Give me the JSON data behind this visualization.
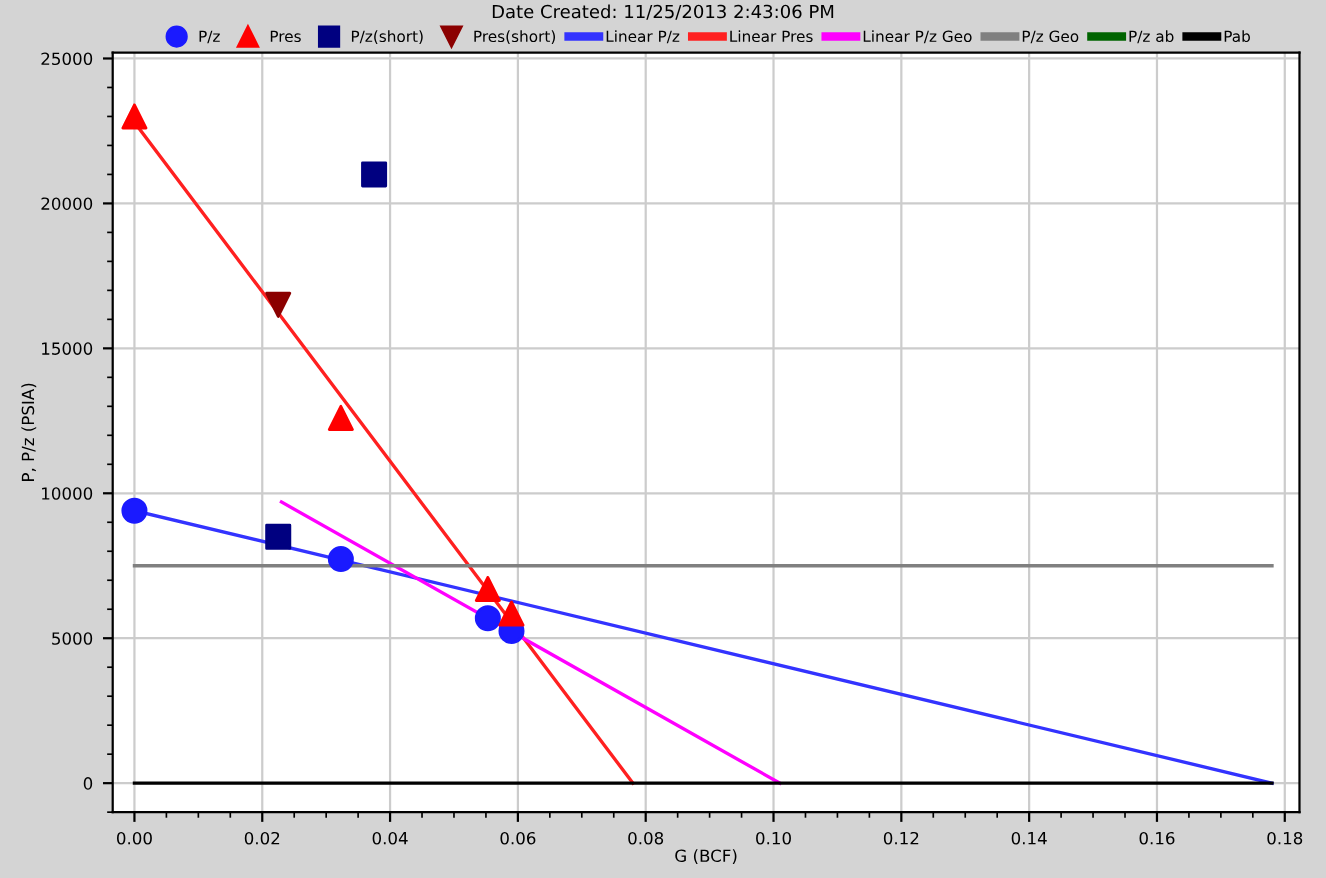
{
  "chart_data": {
    "type": "scatter",
    "title": "Date Created: 11/25/2013 2:43:06 PM",
    "xlabel": "G (BCF)",
    "ylabel": "P, P/z (PSIA)",
    "xlim": [
      -0.0034,
      0.1823
    ],
    "ylim": [
      -1000,
      25200
    ],
    "xticks": [
      {
        "value": 0,
        "label": "0.00"
      },
      {
        "value": 0.02,
        "label": "0.02"
      },
      {
        "value": 0.04,
        "label": "0.04"
      },
      {
        "value": 0.06,
        "label": "0.06"
      },
      {
        "value": 0.08,
        "label": "0.08"
      },
      {
        "value": 0.1,
        "label": "0.10"
      },
      {
        "value": 0.12,
        "label": "0.12"
      },
      {
        "value": 0.14,
        "label": "0.14"
      },
      {
        "value": 0.16,
        "label": "0.16"
      },
      {
        "value": 0.18,
        "label": "0.18"
      }
    ],
    "yticks": [
      0,
      5000,
      10000,
      15000,
      20000,
      25000
    ],
    "grid": true,
    "legend": "top",
    "series": [
      {
        "name": "P/z",
        "marker": "circle",
        "color": "#1a1aff",
        "x": [
          0,
          0.0323,
          0.0553,
          0.059
        ],
        "values": [
          9400,
          7730,
          5690,
          5250
        ]
      },
      {
        "name": "Pres",
        "marker": "triangle",
        "color": "#ff0000",
        "x": [
          0,
          0.0323,
          0.0553,
          0.059
        ],
        "values": [
          23000,
          12600,
          6700,
          5850
        ]
      },
      {
        "name": "P/z(short)",
        "marker": "square",
        "color": "#000080",
        "x": [
          0.0225,
          0.0375
        ],
        "values": [
          8500,
          21000
        ]
      },
      {
        "name": "Pres(short)",
        "marker": "triangle_down",
        "color": "#8b0000",
        "x": [
          0.0225
        ],
        "values": [
          16500
        ]
      },
      {
        "name": "Linear P/z",
        "type": "line",
        "marker": "none",
        "color": "#3333ff",
        "x": [
          0,
          0.178
        ],
        "values": [
          9400,
          0
        ]
      },
      {
        "name": "Linear Pres",
        "type": "line",
        "marker": "none",
        "color": "#ff2020",
        "x": [
          0,
          0.078
        ],
        "values": [
          22800,
          0
        ]
      },
      {
        "name": "Linear P/z Geo",
        "type": "line",
        "marker": "none",
        "color": "#ff00ff",
        "x": [
          0.023,
          0.101
        ],
        "values": [
          9700,
          0
        ]
      },
      {
        "name": "P/z Geo",
        "type": "line",
        "marker": "none",
        "color": "#808080",
        "x": [
          0,
          0.178
        ],
        "values": [
          7500,
          7500
        ]
      },
      {
        "name": "P/z ab",
        "type": "line",
        "marker": "none",
        "color": "#006400"
      },
      {
        "name": "Pab",
        "type": "line",
        "marker": "none",
        "color": "#000000",
        "x": [
          0,
          0.178
        ],
        "values": [
          0,
          0
        ]
      }
    ]
  }
}
